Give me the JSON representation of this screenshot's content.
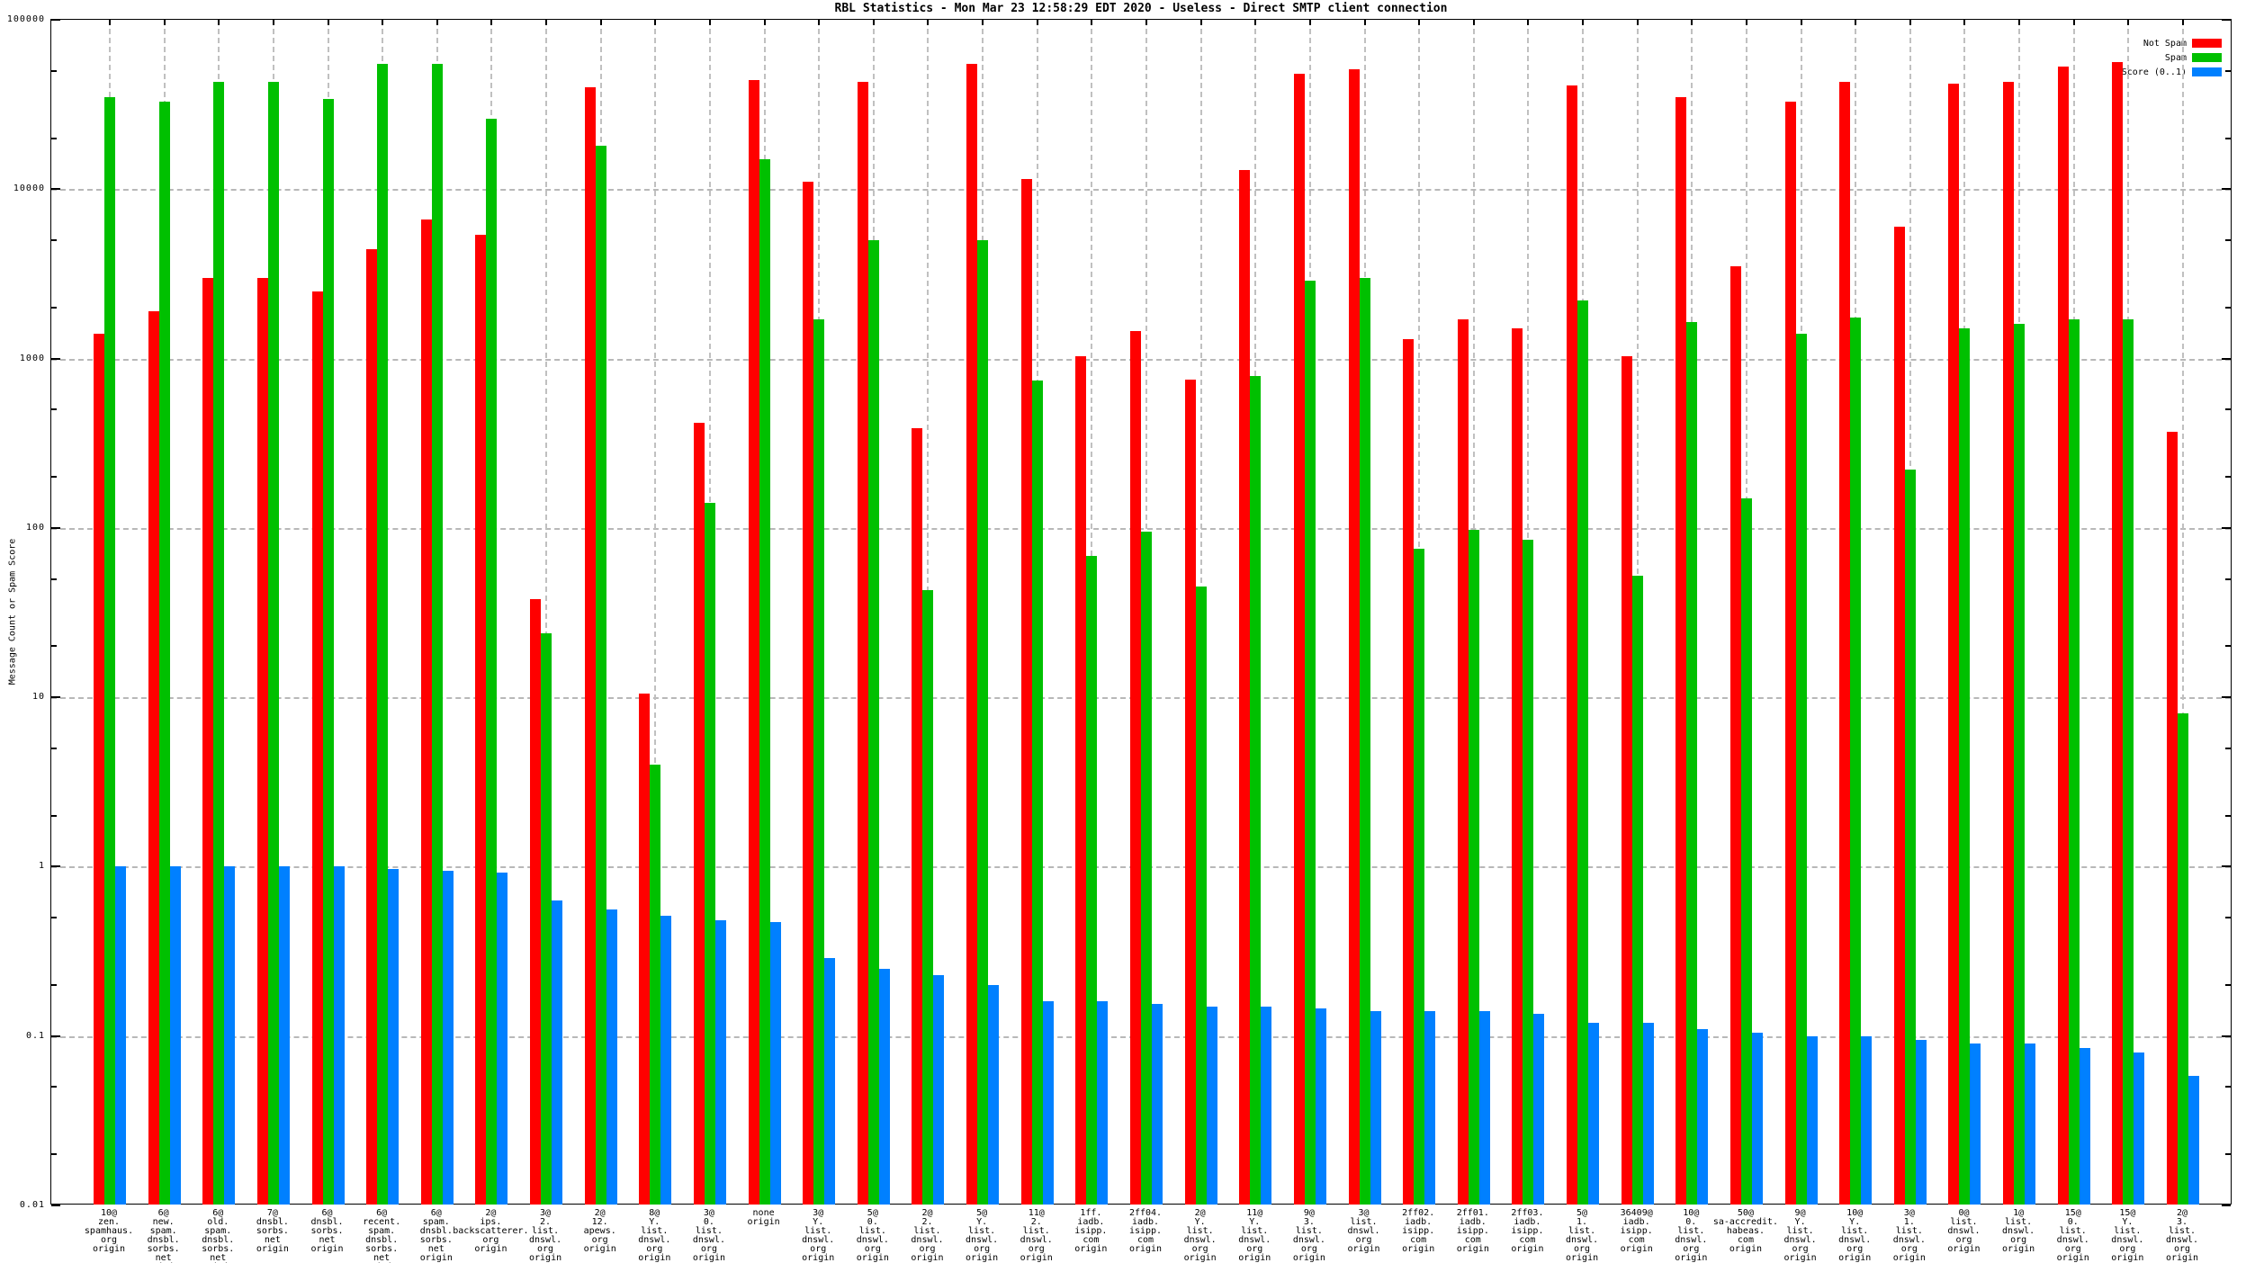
{
  "title": "RBL Statistics - Mon Mar 23 12:58:29 EDT 2020 - Useless - Direct SMTP client connection",
  "y_axis_label": "Message Count or Spam Score",
  "legend": [
    {
      "label": "Not Spam",
      "color": "#ff0000"
    },
    {
      "label": "Spam",
      "color": "#00c000"
    },
    {
      "label": "Score (0..1)",
      "color": "#0080ff"
    }
  ],
  "chart_data": {
    "type": "bar",
    "y_scale": "log",
    "ylim": [
      0.01,
      100000
    ],
    "y_ticks": [
      "100000",
      "10000",
      "1000",
      "100",
      "10",
      "1",
      "0.1",
      "0.01"
    ],
    "grid": true,
    "legend_position": "top-right",
    "categories": [
      [
        "10@",
        "zen.",
        "spamhaus.",
        "org",
        "origin"
      ],
      [
        "6@",
        "new.",
        "spam.",
        "dnsbl.",
        "sorbs.",
        "net",
        "origin"
      ],
      [
        "6@",
        "old.",
        "spam.",
        "dnsbl.",
        "sorbs.",
        "net",
        "origin"
      ],
      [
        "7@",
        "dnsbl.",
        "sorbs.",
        "net",
        "origin"
      ],
      [
        "6@",
        "dnsbl.",
        "sorbs.",
        "net",
        "origin"
      ],
      [
        "6@",
        "recent.",
        "spam.",
        "dnsbl.",
        "sorbs.",
        "net",
        "origin"
      ],
      [
        "6@",
        "spam.",
        "dnsbl.",
        "sorbs.",
        "net",
        "origin"
      ],
      [
        "2@",
        "ips.",
        "backscatterer.",
        "org",
        "origin"
      ],
      [
        "3@",
        "2.",
        "list.",
        "dnswl.",
        "org",
        "origin"
      ],
      [
        "2@",
        "12.",
        "apews.",
        "org",
        "origin"
      ],
      [
        "8@",
        "Y.",
        "list.",
        "dnswl.",
        "org",
        "origin"
      ],
      [
        "3@",
        "0.",
        "list.",
        "dnswl.",
        "org",
        "origin"
      ],
      [
        "none",
        "origin"
      ],
      [
        "3@",
        "Y.",
        "list.",
        "dnswl.",
        "org",
        "origin"
      ],
      [
        "5@",
        "0.",
        "list.",
        "dnswl.",
        "org",
        "origin"
      ],
      [
        "2@",
        "2.",
        "list.",
        "dnswl.",
        "org",
        "origin"
      ],
      [
        "5@",
        "Y.",
        "list.",
        "dnswl.",
        "org",
        "origin"
      ],
      [
        "11@",
        "2.",
        "list.",
        "dnswl.",
        "org",
        "origin"
      ],
      [
        "1ff.",
        "iadb.",
        "isipp.",
        "com",
        "origin"
      ],
      [
        "2ff04.",
        "iadb.",
        "isipp.",
        "com",
        "origin"
      ],
      [
        "2@",
        "Y.",
        "list.",
        "dnswl.",
        "org",
        "origin"
      ],
      [
        "11@",
        "Y.",
        "list.",
        "dnswl.",
        "org",
        "origin"
      ],
      [
        "9@",
        "3.",
        "list.",
        "dnswl.",
        "org",
        "origin"
      ],
      [
        "3@",
        "list.",
        "dnswl.",
        "org",
        "origin"
      ],
      [
        "2ff02.",
        "iadb.",
        "isipp.",
        "com",
        "origin"
      ],
      [
        "2ff01.",
        "iadb.",
        "isipp.",
        "com",
        "origin"
      ],
      [
        "2ff03.",
        "iadb.",
        "isipp.",
        "com",
        "origin"
      ],
      [
        "5@",
        "1.",
        "list.",
        "dnswl.",
        "org",
        "origin"
      ],
      [
        "36409@",
        "iadb.",
        "isipp.",
        "com",
        "origin"
      ],
      [
        "10@",
        "0.",
        "list.",
        "dnswl.",
        "org",
        "origin"
      ],
      [
        "50@",
        "sa-accredit.",
        "habeas.",
        "com",
        "origin"
      ],
      [
        "9@",
        "Y.",
        "list.",
        "dnswl.",
        "org",
        "origin"
      ],
      [
        "10@",
        "Y.",
        "list.",
        "dnswl.",
        "org",
        "origin"
      ],
      [
        "3@",
        "1.",
        "list.",
        "dnswl.",
        "org",
        "origin"
      ],
      [
        "0@",
        "list.",
        "dnswl.",
        "org",
        "origin"
      ],
      [
        "1@",
        "list.",
        "dnswl.",
        "org",
        "origin"
      ],
      [
        "15@",
        "0.",
        "list.",
        "dnswl.",
        "org",
        "origin"
      ],
      [
        "15@",
        "Y.",
        "list.",
        "dnswl.",
        "org",
        "origin"
      ],
      [
        "2@",
        "3.",
        "list.",
        "dnswl.",
        "org",
        "origin"
      ]
    ],
    "series": [
      {
        "name": "Not Spam",
        "color": "#ff0000",
        "values": [
          1400,
          1900,
          3000,
          3000,
          2500,
          4400,
          6600,
          5400,
          38,
          40000,
          10.5,
          420,
          44000,
          11000,
          43000,
          390,
          55000,
          11500,
          1030,
          1450,
          750,
          13000,
          48000,
          51000,
          1300,
          1700,
          1500,
          41000,
          1030,
          35000,
          3500,
          33000,
          43000,
          6000,
          42000,
          43000,
          53000,
          56000,
          370
        ]
      },
      {
        "name": "Spam",
        "color": "#00c000",
        "values": [
          35000,
          33000,
          43000,
          43000,
          34000,
          55000,
          55000,
          26000,
          24,
          18000,
          4,
          140,
          15000,
          1700,
          5000,
          43,
          5000,
          740,
          68,
          95,
          45,
          790,
          2900,
          3000,
          75,
          97,
          85,
          2200,
          52,
          1650,
          150,
          1400,
          1750,
          220,
          1500,
          1600,
          1700,
          1700,
          8
        ]
      },
      {
        "name": "Score (0..1)",
        "color": "#0080ff",
        "values": [
          1.0,
          1.0,
          1.0,
          1.0,
          1.0,
          0.97,
          0.95,
          0.92,
          0.63,
          0.56,
          0.51,
          0.48,
          0.47,
          0.29,
          0.25,
          0.23,
          0.2,
          0.16,
          0.16,
          0.155,
          0.15,
          0.15,
          0.145,
          0.14,
          0.14,
          0.14,
          0.135,
          0.12,
          0.12,
          0.11,
          0.105,
          0.1,
          0.1,
          0.095,
          0.09,
          0.09,
          0.085,
          0.08,
          0.058
        ]
      }
    ]
  }
}
